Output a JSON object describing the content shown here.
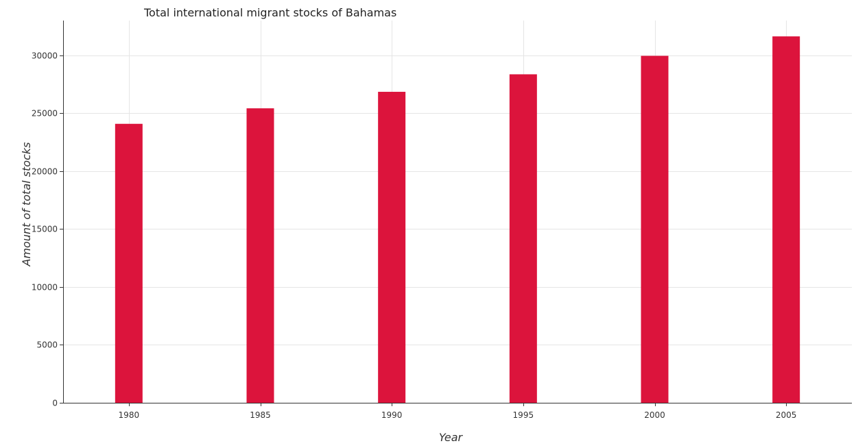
{
  "chart_data": {
    "type": "bar",
    "title": "Total international migrant stocks of Bahamas",
    "xlabel": "Year",
    "ylabel": "Amount of total stocks",
    "categories": [
      "1980",
      "1985",
      "1990",
      "1995",
      "2000",
      "2005"
    ],
    "values": [
      24084,
      25423,
      26848,
      28360,
      29955,
      31633
    ],
    "ylim": [
      0,
      33000
    ],
    "yticks": [
      0,
      5000,
      10000,
      15000,
      20000,
      25000,
      30000
    ],
    "ytick_labels": [
      "0",
      "5000",
      "10000",
      "15000",
      "20000",
      "25000",
      "30000"
    ],
    "grid": true,
    "bar_color": "#dc143c"
  }
}
